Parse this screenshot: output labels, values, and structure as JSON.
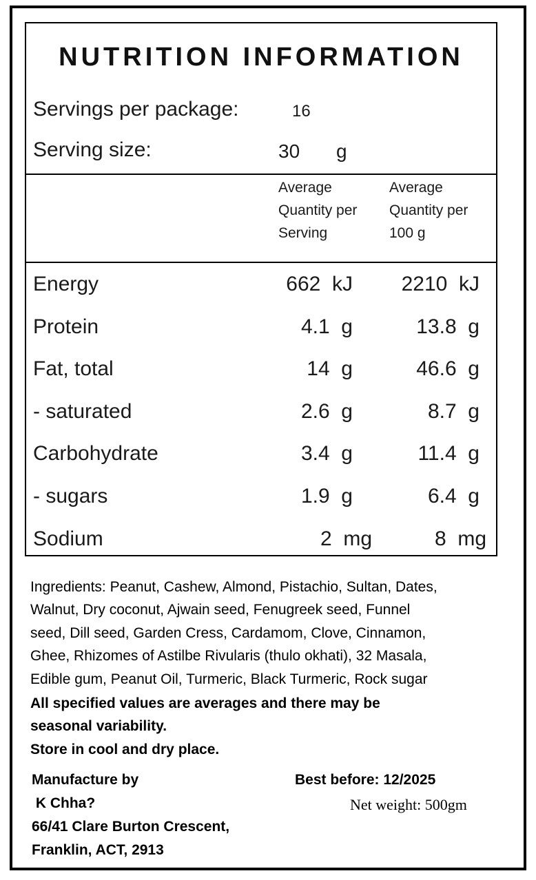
{
  "panel": {
    "title": "NUTRITION INFORMATION",
    "servings_label": "Servings per package:",
    "servings_value": "16",
    "serving_size_label": "Serving size:",
    "serving_size_value": "30",
    "serving_size_unit": "g",
    "col1_header": [
      "Average",
      "Quantity per",
      "Serving"
    ],
    "col2_header": [
      "Average",
      "Quantity per",
      "100 g"
    ],
    "rows": [
      {
        "name": "Energy",
        "per_serving": "662  kJ",
        "per_100g": "2210  kJ"
      },
      {
        "name": "Protein",
        "per_serving": "4.1  g",
        "per_100g": "13.8  g"
      },
      {
        "name": "Fat, total",
        "per_serving": "14  g",
        "per_100g": "46.6  g"
      },
      {
        "name": "- saturated",
        "per_serving": "2.6  g",
        "per_100g": "8.7  g"
      },
      {
        "name": "Carbohydrate",
        "per_serving": "3.4  g",
        "per_100g": "11.4  g"
      },
      {
        "name": "- sugars",
        "per_serving": "1.9  g",
        "per_100g": "6.4  g"
      },
      {
        "name": "Sodium",
        "per_serving": "2  mg",
        "per_100g": "8  mg"
      }
    ]
  },
  "ingredients_lines": [
    "Ingredients: Peanut, Cashew, Almond, Pistachio, Sultan, Dates,",
    "Walnut, Dry coconut, Ajwain seed, Fenugreek seed, Funnel",
    "seed, Dill seed, Garden Cress, Cardamom, Clove, Cinnamon,",
    "Ghee, Rhizomes of Astilbe Rivularis (thulo okhati), 32 Masala,",
    "Edible gum, Peanut Oil, Turmeric, Black Turmeric, Rock sugar"
  ],
  "notes_lines": [
    "All specified values are averages and there may be",
    "seasonal variability.",
    "Store in cool and dry place."
  ],
  "manufacturer_lines": [
    "Manufacture by",
    " K Chha?",
    "66/41 Clare Burton Crescent,",
    "Franklin, ACT, 2913"
  ],
  "best_before": "Best before: 12/2025",
  "net_weight": "Net weight: 500gm"
}
